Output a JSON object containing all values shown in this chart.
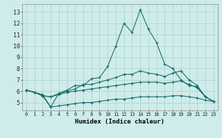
{
  "xlabel": "Humidex (Indice chaleur)",
  "bg_color": "#ceecea",
  "grid_color": "#b0d4d2",
  "line_color": "#1a6b6b",
  "xlim": [
    -0.5,
    23.5
  ],
  "ylim": [
    4.3,
    13.7
  ],
  "yticks": [
    5,
    6,
    7,
    8,
    9,
    10,
    11,
    12,
    13
  ],
  "xticks": [
    0,
    1,
    2,
    3,
    4,
    5,
    6,
    7,
    8,
    9,
    10,
    11,
    12,
    13,
    14,
    15,
    16,
    17,
    18,
    19,
    20,
    21,
    22,
    23
  ],
  "series": [
    {
      "x": [
        0,
        1,
        2,
        3,
        4,
        5,
        6,
        7,
        8,
        9,
        10,
        11,
        12,
        13,
        14,
        15,
        16,
        17,
        18,
        19,
        20,
        21,
        22,
        23
      ],
      "y": [
        6.1,
        5.9,
        5.7,
        4.6,
        5.8,
        6.1,
        6.5,
        6.5,
        7.1,
        7.2,
        8.2,
        10.0,
        12.0,
        11.2,
        13.2,
        11.5,
        10.3,
        8.4,
        8.0,
        7.0,
        6.5,
        6.4,
        5.5,
        5.1
      ]
    },
    {
      "x": [
        0,
        1,
        2,
        3,
        4,
        5,
        6,
        7,
        8,
        9,
        10,
        11,
        12,
        13,
        14,
        15,
        16,
        17,
        18,
        19,
        20,
        21,
        22,
        23
      ],
      "y": [
        6.1,
        5.9,
        5.6,
        5.5,
        5.8,
        6.0,
        6.2,
        6.6,
        6.6,
        6.8,
        7.0,
        7.2,
        7.5,
        7.5,
        7.8,
        7.6,
        7.5,
        7.3,
        7.6,
        7.8,
        7.0,
        6.5,
        5.5,
        5.1
      ]
    },
    {
      "x": [
        0,
        1,
        2,
        3,
        4,
        5,
        6,
        7,
        8,
        9,
        10,
        11,
        12,
        13,
        14,
        15,
        16,
        17,
        18,
        19,
        20,
        21,
        22,
        23
      ],
      "y": [
        6.1,
        5.9,
        5.6,
        5.5,
        5.7,
        5.9,
        6.0,
        6.1,
        6.2,
        6.3,
        6.4,
        6.5,
        6.6,
        6.7,
        6.8,
        6.8,
        6.8,
        6.7,
        6.8,
        6.9,
        6.6,
        6.3,
        5.5,
        5.1
      ]
    },
    {
      "x": [
        0,
        1,
        2,
        3,
        4,
        5,
        6,
        7,
        8,
        9,
        10,
        11,
        12,
        13,
        14,
        15,
        16,
        17,
        18,
        19,
        20,
        21,
        22,
        23
      ],
      "y": [
        6.1,
        5.9,
        5.6,
        4.6,
        4.7,
        4.8,
        4.9,
        5.0,
        5.0,
        5.1,
        5.2,
        5.3,
        5.3,
        5.4,
        5.5,
        5.5,
        5.5,
        5.5,
        5.6,
        5.6,
        5.5,
        5.4,
        5.2,
        5.1
      ]
    }
  ]
}
